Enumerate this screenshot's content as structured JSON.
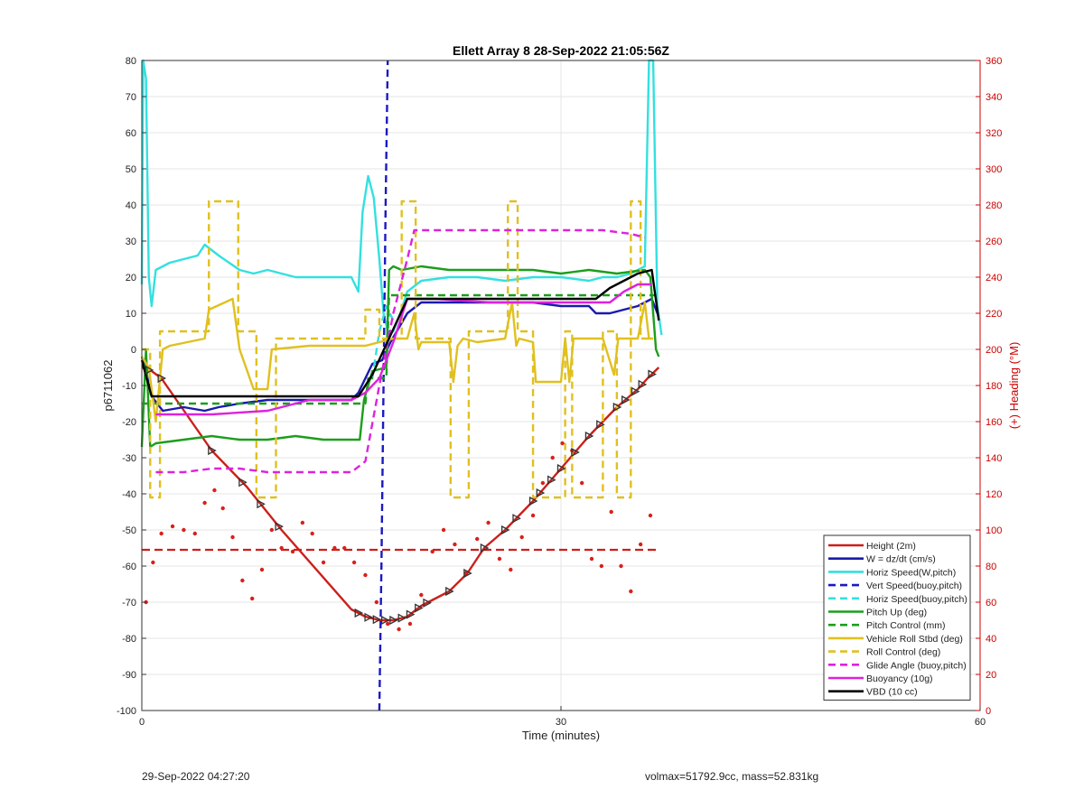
{
  "chart_data": {
    "type": "line",
    "title": "Ellett Array 8 28-Sep-2022 21:05:56Z",
    "xlabel": "Time (minutes)",
    "ylabel": "p6711062",
    "y2label": "(+) Heading (°M)",
    "xlim": [
      0,
      60
    ],
    "ylim": [
      -100,
      80
    ],
    "y2lim": [
      0,
      360
    ],
    "xticks": [
      0,
      30,
      60
    ],
    "yticks": [
      -100,
      -90,
      -80,
      -70,
      -60,
      -50,
      -40,
      -30,
      -20,
      -10,
      0,
      10,
      20,
      30,
      40,
      50,
      60,
      70,
      80
    ],
    "y2ticks": [
      0,
      20,
      40,
      60,
      80,
      100,
      120,
      140,
      160,
      180,
      200,
      220,
      240,
      260,
      280,
      300,
      320,
      340,
      360
    ],
    "grid": true,
    "legend_position": "bottom-right",
    "colors": {
      "axes": "#333333",
      "right_axis": "#cc0000",
      "grid": "#e6e6e6"
    },
    "series": [
      {
        "name": "Height (2m)",
        "color": "#cc1f1a",
        "dash": "solid",
        "x": [
          0.0,
          0.7,
          1.4,
          5.0,
          7.5,
          10.0,
          15.0,
          16.0,
          17.0,
          18.0,
          19.0,
          20.0,
          22.0,
          23.3,
          24.5,
          26.0,
          28.0,
          30.0,
          32.0,
          34.0,
          35.5,
          36.2,
          37.0
        ],
        "values": [
          -5,
          -6,
          -8,
          -28,
          -38,
          -50,
          -72,
          -74,
          -75,
          -75,
          -74,
          -71,
          -67,
          -62,
          -55,
          -50,
          -42,
          -33,
          -24,
          -16,
          -11,
          -8,
          -5
        ]
      },
      {
        "name": "W = dz/dt (cm/s)",
        "color": "#1a1aad",
        "dash": "solid",
        "x": [
          0.0,
          0.3,
          0.7,
          1.5,
          3.0,
          4.5,
          5.5,
          7.0,
          9.0,
          11.0,
          13.0,
          15.0,
          15.5,
          16.5,
          17.2,
          17.8,
          19.0,
          20.0,
          22.0,
          24.0,
          26.0,
          28.0,
          30.0,
          32.0,
          32.5,
          33.5,
          34.5,
          35.5,
          36.5,
          37.0
        ],
        "values": [
          -2,
          -6,
          -13,
          -17,
          -16,
          -17,
          -16,
          -15,
          -14,
          -14,
          -14,
          -14,
          -12,
          -4,
          -3,
          2,
          10,
          13,
          13,
          13,
          13,
          13,
          12,
          12,
          10,
          10,
          11,
          12,
          14,
          9
        ]
      },
      {
        "name": "Horiz Speed(W,pitch)",
        "color": "#33e0e0",
        "dash": "solid",
        "x": [
          0.0,
          0.1,
          0.3,
          0.5,
          0.7,
          1.0,
          2.0,
          3.0,
          4.0,
          4.5,
          5.5,
          7.0,
          8.0,
          9.0,
          11.0,
          13.0,
          15.0,
          15.5,
          15.8,
          16.2,
          16.6,
          17.0,
          17.3,
          17.6,
          18.0,
          18.5,
          19.0,
          20.0,
          22.0,
          24.0,
          26.0,
          28.0,
          30.0,
          32.0,
          33.0,
          34.0,
          35.0,
          36.0,
          36.3,
          36.6,
          36.9,
          37.2
        ],
        "values": [
          18,
          80,
          75,
          20,
          12,
          22,
          24,
          25,
          26,
          29,
          26,
          22,
          21,
          22,
          20,
          20,
          20,
          16,
          38,
          48,
          42,
          25,
          10,
          5,
          5,
          10,
          16,
          19,
          20,
          20,
          19,
          20,
          20,
          19,
          20,
          20,
          21,
          23,
          80,
          80,
          12,
          4
        ]
      },
      {
        "name": "Vert Speed(buoy,pitch)",
        "color": "#1a1ac2",
        "dash": "dashed",
        "x": [
          17.0,
          17.15,
          17.3,
          17.45,
          17.6
        ],
        "values": [
          -100,
          -60,
          -10,
          40,
          80
        ]
      },
      {
        "name": "Horiz Speed(buoy,pitch)",
        "color": "#33e0e0",
        "dash": "dashed",
        "x": [
          16.5,
          17.0,
          17.5,
          18.0
        ],
        "values": [
          -8,
          5,
          12,
          8
        ]
      },
      {
        "name": "Pitch Up (deg)",
        "color": "#1c9e1c",
        "dash": "solid",
        "x": [
          0.0,
          0.3,
          0.6,
          1.0,
          3.0,
          5.0,
          7.0,
          9.0,
          11.0,
          13.0,
          15.0,
          15.6,
          15.9,
          16.5,
          17.5,
          17.7,
          18.0,
          18.6,
          20.0,
          22.0,
          24.0,
          26.0,
          28.0,
          30.0,
          32.0,
          34.0,
          36.0,
          36.4,
          36.8,
          37.0
        ],
        "values": [
          -27,
          0,
          -27,
          -26,
          -25,
          -24,
          -25,
          -25,
          -24,
          -25,
          -25,
          -25,
          -14,
          -6,
          -5,
          22,
          23,
          22,
          23,
          22,
          22,
          22,
          22,
          21,
          22,
          21,
          22,
          20,
          0,
          -2
        ]
      },
      {
        "name": "Pitch Control (mm)",
        "color": "#1c9e1c",
        "dash": "dashed",
        "x": [
          0.0,
          0.8,
          16.0,
          16.2,
          17.5,
          17.7,
          36.5,
          36.7
        ],
        "values": [
          -15,
          -15,
          -15,
          -8,
          -8,
          15,
          15,
          15
        ]
      },
      {
        "name": "Vehicle Roll Stbd (deg)",
        "color": "#e0c020",
        "dash": "solid",
        "x": [
          0.0,
          0.5,
          1.0,
          1.5,
          2.0,
          4.5,
          4.8,
          6.5,
          7.0,
          8.0,
          8.3,
          9.0,
          9.3,
          12.0,
          15.0,
          16.0,
          17.0,
          18.0,
          19.0,
          19.5,
          19.8,
          20.0,
          22.0,
          22.3,
          22.6,
          23.0,
          24.0,
          26.0,
          26.5,
          26.8,
          27.0,
          28.0,
          28.2,
          29.0,
          29.5,
          30.0,
          30.3,
          30.6,
          30.9,
          31.5,
          33.0,
          33.8,
          34.1,
          34.4,
          35.0,
          35.5,
          36.0,
          36.3,
          36.6
        ],
        "values": [
          -2,
          -5,
          -20,
          0,
          1,
          3,
          11,
          14,
          0,
          -11,
          -11,
          -11,
          0,
          1,
          1,
          1,
          2,
          3,
          3,
          10,
          0,
          2,
          2,
          -9,
          1,
          3,
          2,
          3,
          13,
          1,
          3,
          2,
          -9,
          -9,
          -9,
          -9,
          3,
          -9,
          3,
          3,
          3,
          -7,
          3,
          3,
          3,
          3,
          13,
          3,
          3
        ]
      },
      {
        "name": "Roll Control (deg)",
        "color": "#e0c020",
        "dash": "dashed",
        "x": [
          0.0,
          0.6,
          0.6,
          1.3,
          1.3,
          4.8,
          4.8,
          6.9,
          6.9,
          8.2,
          8.2,
          9.6,
          9.6,
          16.0,
          16.0,
          17.0,
          17.0,
          18.6,
          18.6,
          19.6,
          19.6,
          22.1,
          22.1,
          23.4,
          23.4,
          26.2,
          26.2,
          26.9,
          26.9,
          28.0,
          28.0,
          30.3,
          30.3,
          30.8,
          30.8,
          33.0,
          33.0,
          34.0,
          34.0,
          35.0,
          35.0,
          35.7,
          35.7,
          36.6
        ],
        "values": [
          0,
          0,
          -41,
          -41,
          5,
          5,
          41,
          41,
          5,
          5,
          -41,
          -41,
          3,
          3,
          11,
          11,
          3,
          3,
          41,
          41,
          3,
          3,
          -41,
          -41,
          5,
          5,
          41,
          41,
          5,
          5,
          -41,
          -41,
          5,
          5,
          -41,
          -41,
          5,
          5,
          -41,
          -41,
          41,
          41,
          3,
          3
        ]
      },
      {
        "name": "Glide Angle (buoy,pitch)",
        "color": "#dd22dd",
        "dash": "dashed",
        "x": [
          1.0,
          3.0,
          5.0,
          7.0,
          9.0,
          11.0,
          13.0,
          15.0,
          16.0,
          17.0,
          18.0,
          19.0,
          19.5,
          21.0,
          24.0,
          27.0,
          30.0,
          33.0,
          35.0,
          36.0
        ],
        "values": [
          -34,
          -34,
          -33,
          -33,
          -34,
          -34,
          -34,
          -34,
          -31,
          -10,
          10,
          25,
          33,
          33,
          33,
          33,
          33,
          33,
          32,
          31
        ]
      },
      {
        "name": "Buoyancy (10g)",
        "color": "#dd22dd",
        "dash": "solid",
        "x": [
          1.0,
          5.0,
          9.0,
          12.0,
          15.0,
          16.0,
          17.0,
          18.0,
          19.0,
          21.0,
          25.0,
          29.0,
          33.0,
          33.5,
          34.5,
          35.5,
          36.5
        ],
        "values": [
          -18,
          -18,
          -17,
          -14,
          -14,
          -12,
          -8,
          2,
          14,
          14,
          13,
          13,
          13,
          13,
          16,
          18,
          18
        ]
      },
      {
        "name": "VBD (10 cc)",
        "color": "#000000",
        "dash": "solid",
        "x": [
          0.0,
          0.7,
          1.5,
          15.5,
          16.5,
          19.0,
          20.0,
          22.0,
          27.0,
          32.5,
          33.5,
          34.5,
          35.5,
          36.5,
          37.0
        ],
        "values": [
          -3,
          -13,
          -13,
          -13,
          -7,
          14,
          14,
          14,
          14,
          14,
          17,
          19,
          21,
          22,
          8
        ]
      }
    ],
    "unlabeled_series": [
      {
        "kind": "dashed_hline",
        "color": "#cc1f1a",
        "axis": "left",
        "x": [
          0,
          37
        ],
        "values": [
          -55.5,
          -55.5
        ]
      },
      {
        "kind": "heading_dots",
        "color": "#d8201a",
        "axis": "right",
        "x": [
          0.3,
          0.8,
          1.4,
          2.2,
          3.0,
          3.8,
          4.5,
          5.2,
          5.8,
          6.5,
          7.2,
          7.9,
          8.6,
          9.3,
          10.0,
          10.8,
          11.5,
          12.2,
          13.0,
          13.8,
          14.5,
          15.2,
          16.0,
          16.8,
          17.6,
          18.4,
          19.2,
          20.0,
          20.8,
          21.6,
          22.4,
          23.2,
          24.0,
          24.8,
          25.6,
          26.4,
          27.2,
          28.0,
          28.7,
          29.4,
          30.1,
          30.8,
          31.5,
          32.2,
          32.9,
          33.6,
          34.3,
          35.0,
          35.7,
          36.4
        ],
        "values": [
          60,
          82,
          98,
          102,
          100,
          98,
          115,
          122,
          112,
          96,
          72,
          62,
          78,
          100,
          90,
          88,
          104,
          98,
          82,
          90,
          90,
          82,
          75,
          60,
          48,
          45,
          48,
          64,
          88,
          100,
          92,
          76,
          95,
          104,
          84,
          78,
          96,
          108,
          126,
          140,
          148,
          144,
          126,
          84,
          80,
          110,
          80,
          66,
          92,
          108
        ]
      }
    ],
    "markers": {
      "color": "#333333",
      "x": [
        0.5,
        1.4,
        5.0,
        7.2,
        8.5,
        9.8,
        15.5,
        16.2,
        16.8,
        17.4,
        18.0,
        18.6,
        19.2,
        19.8,
        20.4,
        22.0,
        23.3,
        24.5,
        26.0,
        26.8,
        28.0,
        28.5,
        29.3,
        30.0,
        31.0,
        32.0,
        32.8,
        34.0,
        34.6,
        35.3,
        35.8,
        36.5
      ]
    }
  },
  "footer": {
    "left": "29-Sep-2022 04:27:20",
    "right": "volmax=51792.9cc, mass=52.831kg"
  }
}
